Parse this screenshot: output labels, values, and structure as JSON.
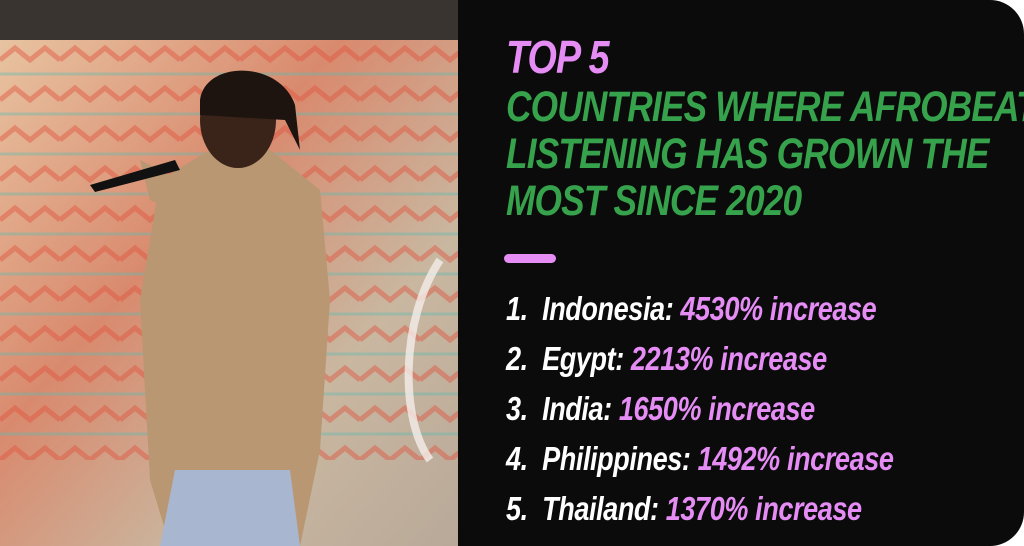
{
  "header": {
    "kicker": "TOP 5",
    "title_lines": [
      "COUNTRIES WHERE AFROBEATS",
      "LISTENING HAS GROWN THE",
      "MOST SINCE 2020"
    ]
  },
  "list": [
    {
      "rank": "1.",
      "country": "Indonesia:",
      "growth": "4530% increase"
    },
    {
      "rank": "2.",
      "country": "Egypt:",
      "growth": "2213% increase"
    },
    {
      "rank": "3.",
      "country": "India:",
      "growth": "1650% increase"
    },
    {
      "rank": "4.",
      "country": "Philippines:",
      "growth": "1492% increase"
    },
    {
      "rank": "5.",
      "country": "Thailand:",
      "growth": "1370% increase"
    }
  ]
}
